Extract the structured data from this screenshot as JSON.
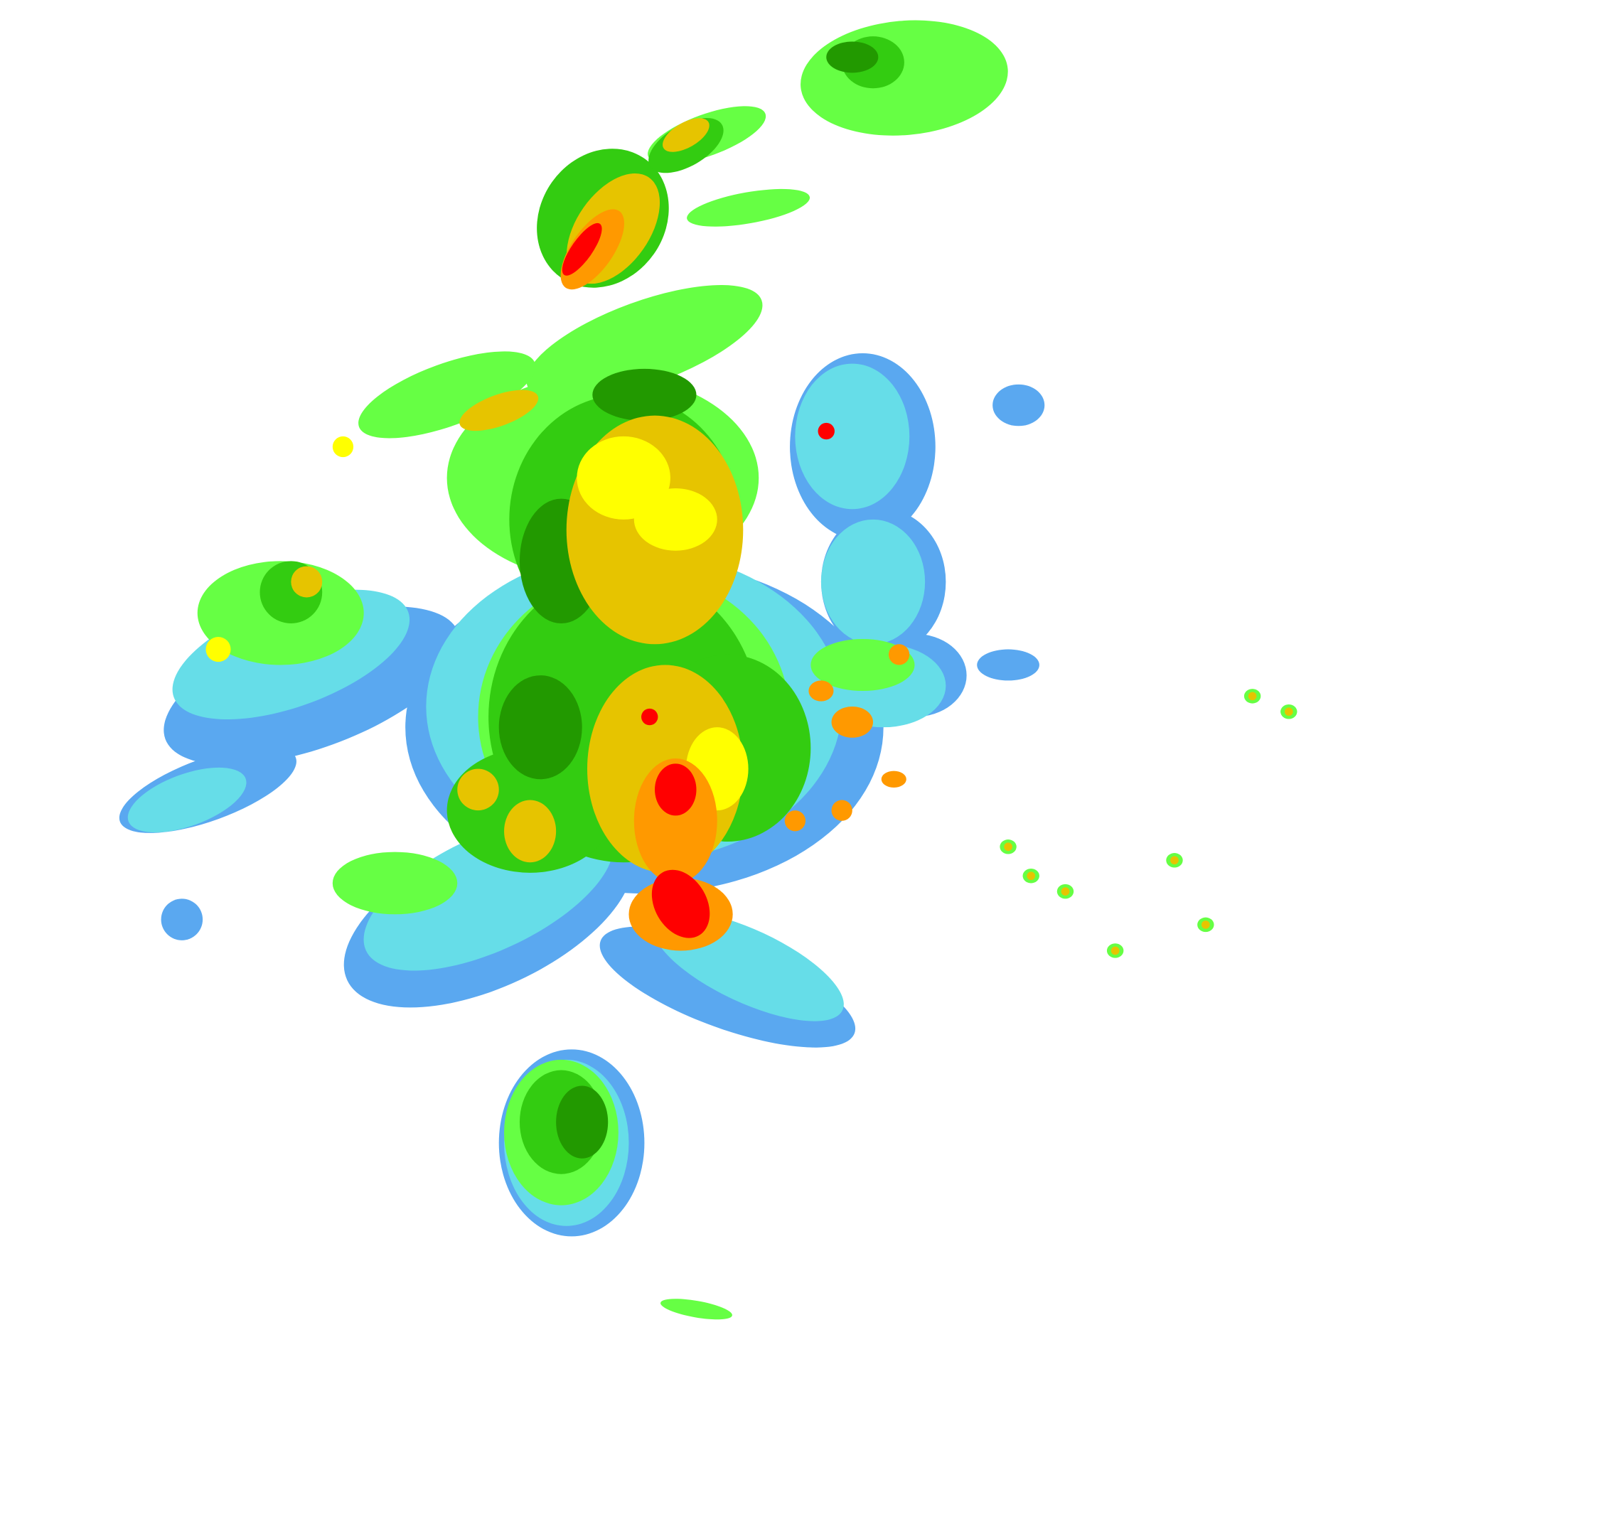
{
  "radar": {
    "background": "#ffffff",
    "palette": {
      "light_blue": "#5aa8f0",
      "cyan": "#66dde8",
      "light_green": "#66ff44",
      "green": "#33cc11",
      "dark_green": "#229900",
      "yellow": "#ffff00",
      "gold": "#e6c400",
      "orange": "#ff9900",
      "red": "#ff0000"
    }
  }
}
